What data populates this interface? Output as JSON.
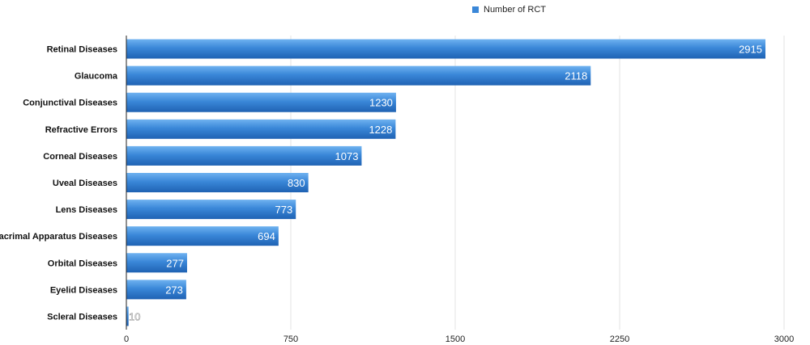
{
  "chart_data": {
    "type": "bar",
    "orientation": "horizontal",
    "categories": [
      "Retinal Diseases",
      "Glaucoma",
      "Conjunctival Diseases",
      "Refractive Errors",
      "Corneal Diseases",
      "Uveal Diseases",
      "Lens Diseases",
      "Lacrimal Apparatus Diseases",
      "Orbital Diseases",
      "Eyelid Diseases",
      "Scleral Diseases"
    ],
    "series": [
      {
        "name": "Number of RCT",
        "values": [
          2915,
          2118,
          1230,
          1228,
          1073,
          830,
          773,
          694,
          277,
          273,
          10
        ]
      }
    ],
    "x_ticks": [
      "0",
      "750",
      "1500",
      "2250",
      "3000"
    ],
    "xlim": [
      0,
      3000
    ],
    "grid": true,
    "legend_position": "top-center",
    "bar_color": "#3a87d8"
  }
}
